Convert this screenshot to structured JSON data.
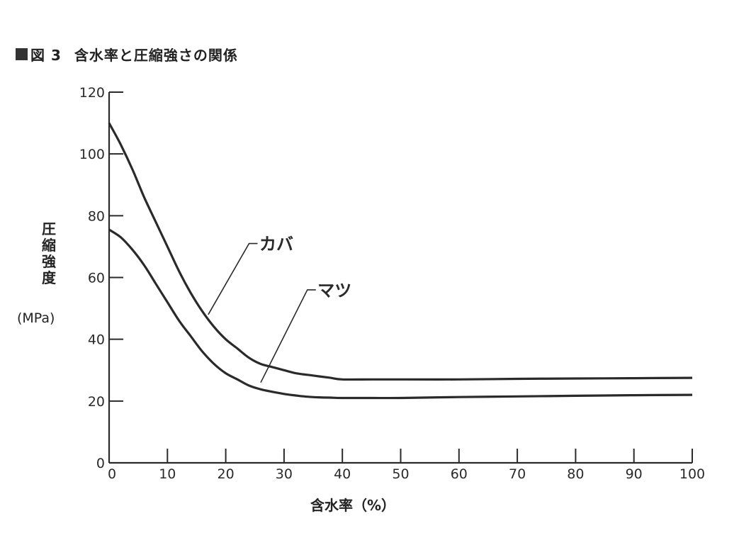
{
  "title": {
    "figure_no": "図 3",
    "text": "含水率と圧縮強さの関係"
  },
  "chart_data": {
    "type": "line",
    "xlabel": "含水率（%）",
    "ylabel": "圧縮強度",
    "yunit": "(MPa)",
    "xlim": [
      0,
      100
    ],
    "ylim": [
      0,
      120
    ],
    "x_ticks": [
      "0",
      "10",
      "20",
      "30",
      "40",
      "50",
      "60",
      "70",
      "80",
      "90",
      "100"
    ],
    "y_ticks": [
      "0",
      "20",
      "40",
      "60",
      "80",
      "100",
      "120"
    ],
    "grid": false,
    "series": [
      {
        "name": "カバ",
        "x": [
          0,
          2,
          4,
          6,
          8,
          10,
          12,
          14,
          16,
          18,
          20,
          22,
          24,
          26,
          28,
          30,
          32,
          34,
          36,
          38,
          40,
          45,
          50,
          60,
          70,
          80,
          90,
          100
        ],
        "y": [
          110,
          103,
          95,
          86,
          78,
          70,
          62,
          55,
          49,
          44,
          40,
          37,
          34,
          32,
          31,
          30,
          29,
          28.5,
          28,
          27.5,
          27,
          27,
          27,
          27,
          27.2,
          27.3,
          27.4,
          27.5
        ]
      },
      {
        "name": "マツ",
        "x": [
          0,
          2,
          4,
          6,
          8,
          10,
          12,
          14,
          16,
          18,
          20,
          22,
          24,
          26,
          28,
          30,
          32,
          34,
          36,
          38,
          40,
          45,
          50,
          60,
          70,
          80,
          90,
          100
        ],
        "y": [
          75.5,
          73,
          69,
          64,
          58,
          52,
          46,
          41,
          36,
          32,
          29,
          27,
          25,
          23.8,
          23,
          22.3,
          21.8,
          21.4,
          21.2,
          21.1,
          21,
          21,
          21,
          21.3,
          21.5,
          21.7,
          21.9,
          22
        ]
      }
    ],
    "annotations": [
      {
        "text": "カバ",
        "series": "カバ"
      },
      {
        "text": "マツ",
        "series": "マツ"
      }
    ]
  }
}
